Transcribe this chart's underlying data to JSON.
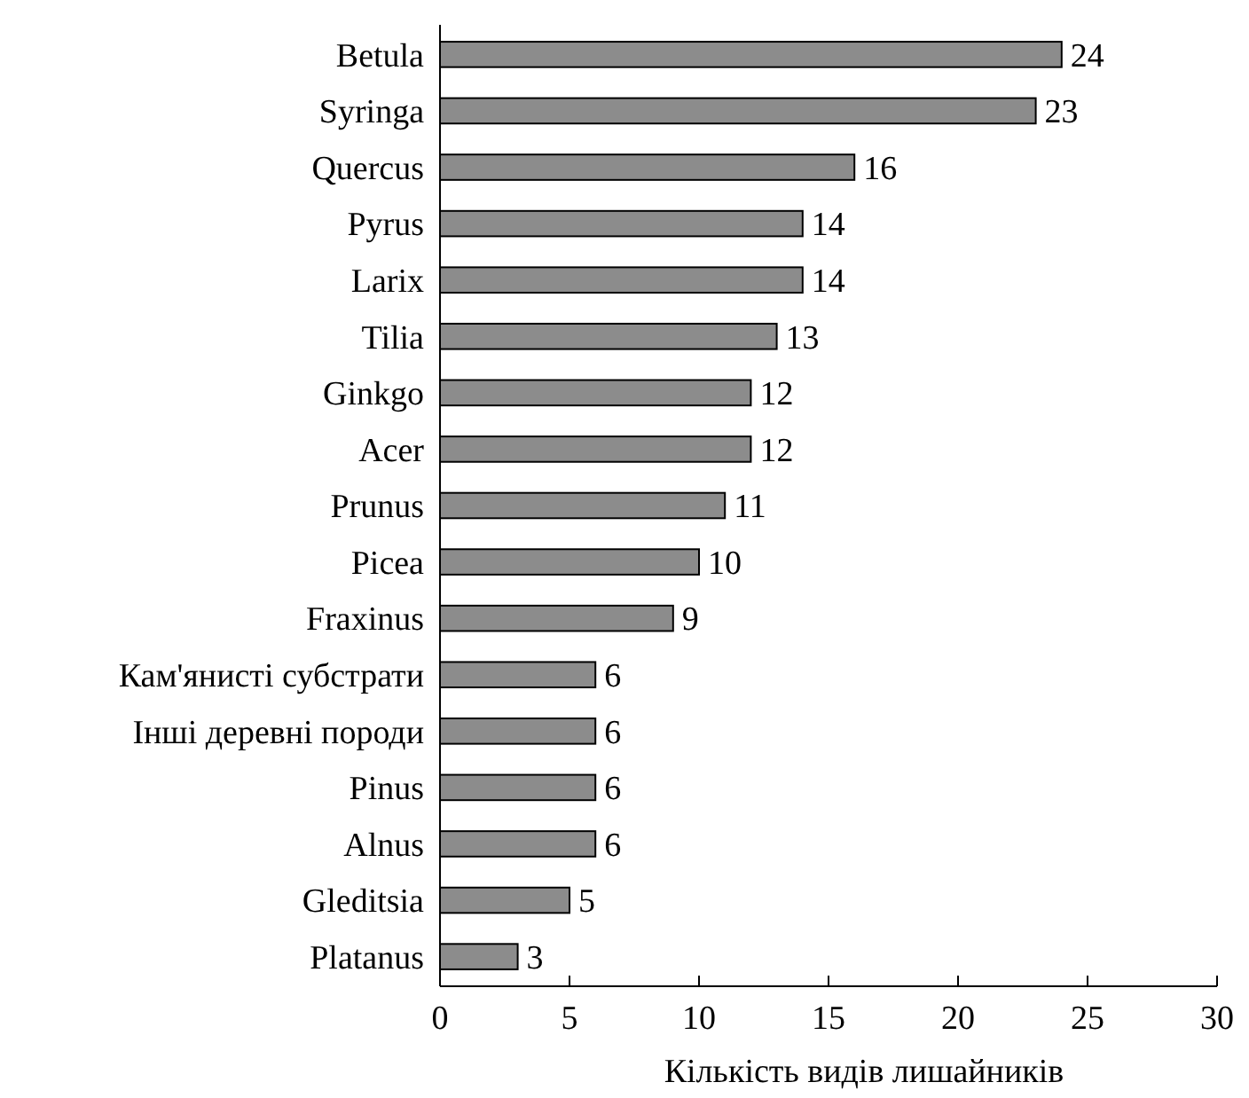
{
  "chart_data": {
    "type": "bar",
    "orientation": "horizontal",
    "xlabel": "Кількість видів лишайників",
    "categories": [
      "Betula",
      "Syringa",
      "Quercus",
      "Pyrus",
      "Larix",
      "Tilia",
      "Ginkgo",
      "Acer",
      "Prunus",
      "Picea",
      "Fraxinus",
      "Кам'янисті субстрати",
      "Інші деревні породи",
      "Pinus",
      "Alnus",
      "Gleditsia",
      "Platanus"
    ],
    "values": [
      24,
      23,
      16,
      14,
      14,
      13,
      12,
      12,
      11,
      10,
      9,
      6,
      6,
      6,
      6,
      5,
      3
    ],
    "color": "#8c8c8c",
    "xlim": [
      0,
      30
    ],
    "xticks": [
      0,
      5,
      10,
      15,
      20,
      25,
      30
    ],
    "data_labels": true,
    "grid": false
  }
}
